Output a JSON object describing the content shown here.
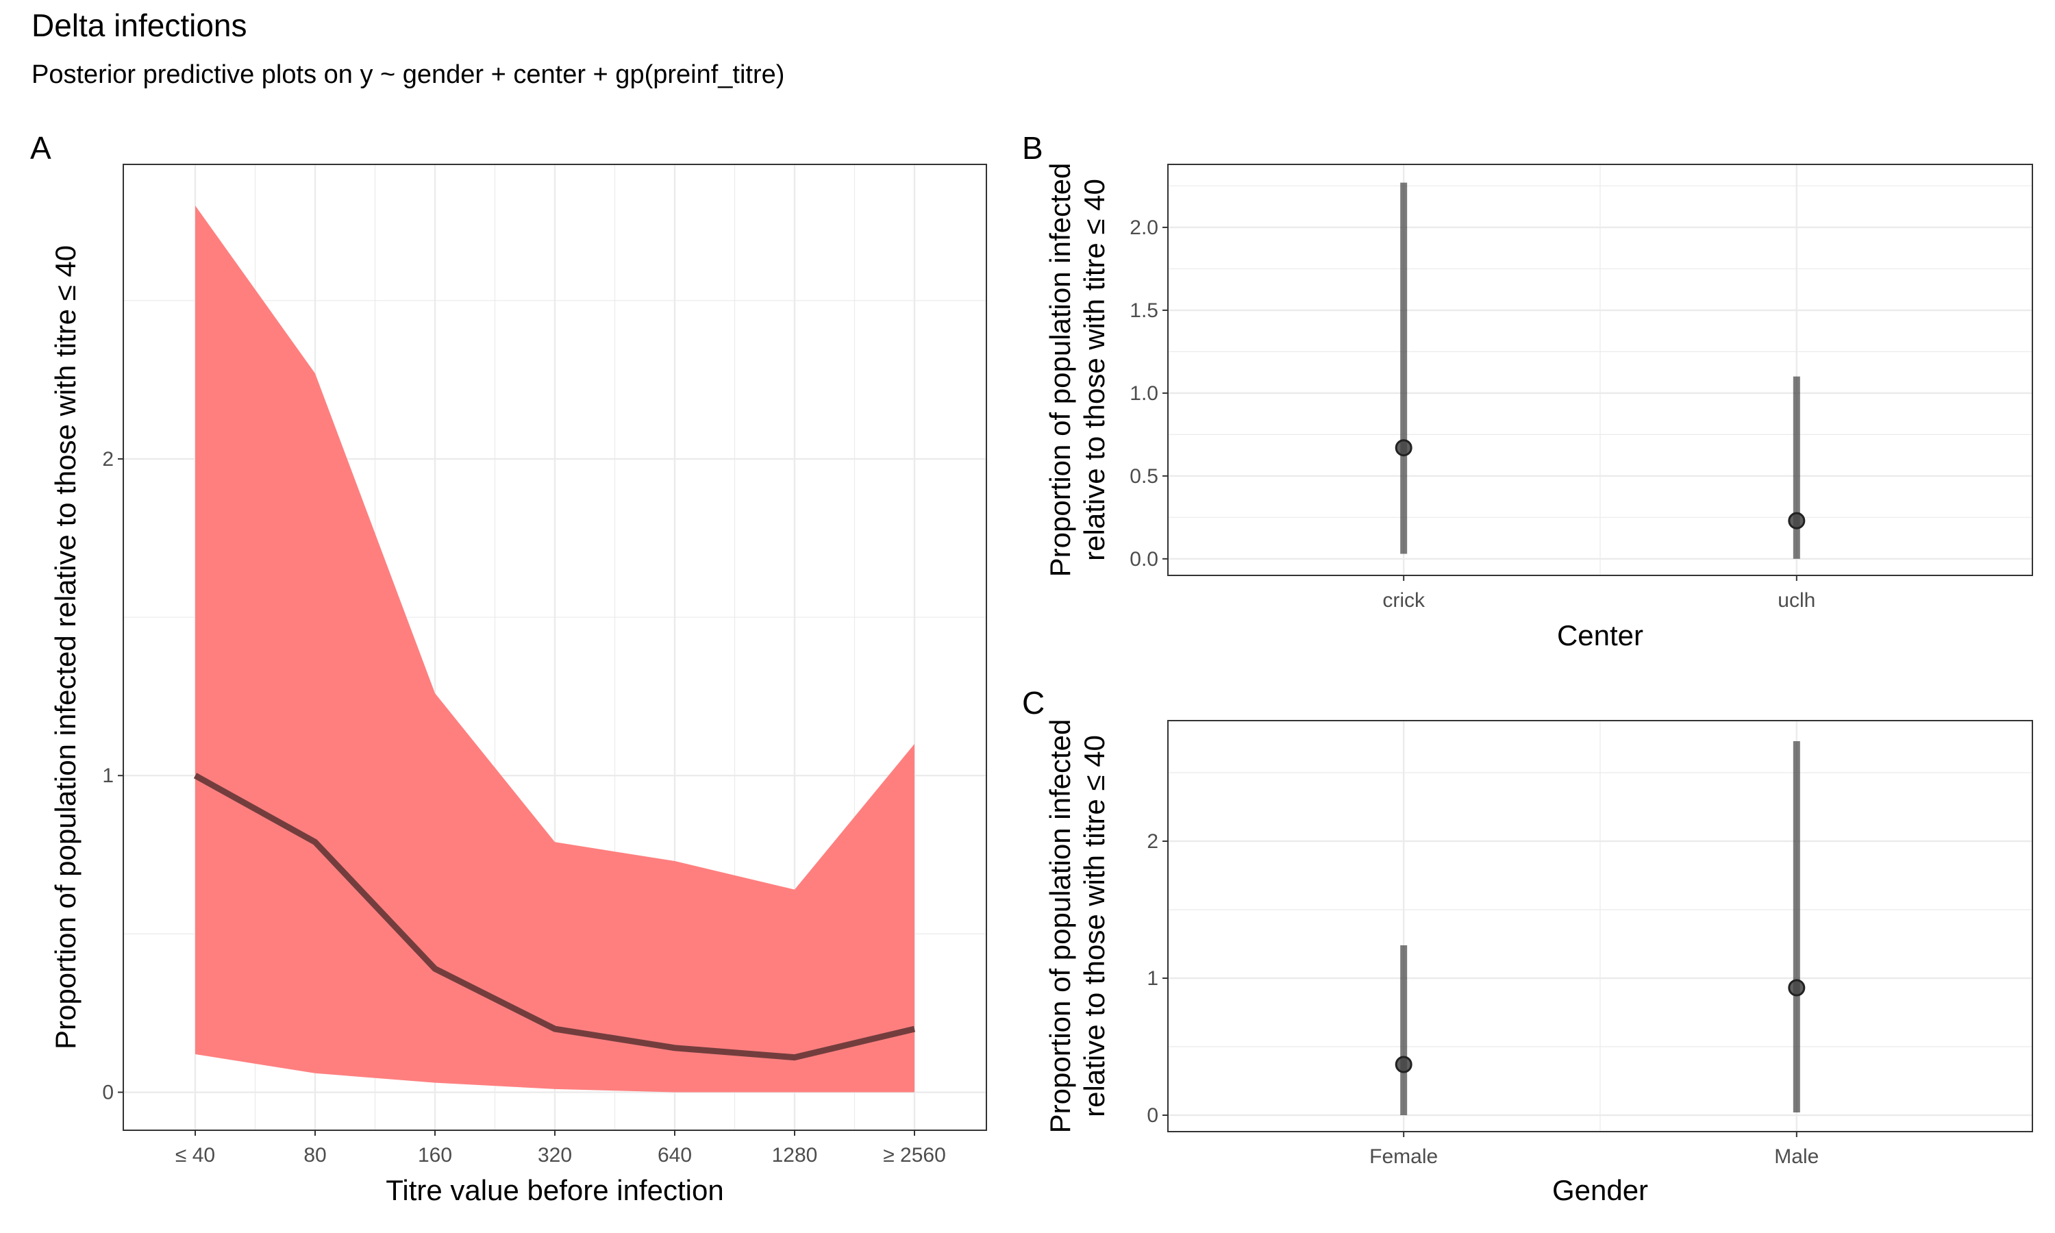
{
  "title": "Delta infections",
  "subtitle": "Posterior predictive plots on y ~ gender + center + gp(preinf_titre)",
  "colors": {
    "ribbon": "#FF7F7F",
    "line": "#6B3A3A",
    "point": "#333333",
    "grid": "#EBEBEB",
    "panel_border": "#333333"
  },
  "chart_data": [
    {
      "panel": "A",
      "type": "area",
      "xlabel": "Titre value before infection",
      "ylabel": "Proportion of population infected relative to those with titre ≤ 40",
      "categories": [
        "≤ 40",
        "80",
        "160",
        "320",
        "640",
        "1280",
        "≥ 2560"
      ],
      "y_ticks": [
        "0",
        "1",
        "2"
      ],
      "ylim": [
        -0.12,
        2.93
      ],
      "grid": true,
      "series": [
        {
          "kind": "ribbon",
          "lower": [
            0.12,
            0.06,
            0.03,
            0.01,
            0.0,
            0.0,
            0.0
          ],
          "upper": [
            2.8,
            2.27,
            1.26,
            0.79,
            0.73,
            0.64,
            1.1
          ]
        },
        {
          "kind": "line",
          "values": [
            1.0,
            0.79,
            0.39,
            0.2,
            0.14,
            0.11,
            0.2
          ]
        }
      ]
    },
    {
      "panel": "B",
      "type": "scatter",
      "xlabel": "Center",
      "ylabel_lines": [
        "Proportion of population infected",
        "relative to those with titre ≤ 40"
      ],
      "categories": [
        "crick",
        "uclh"
      ],
      "y_ticks": [
        "0.0",
        "0.5",
        "1.0",
        "1.5",
        "2.0"
      ],
      "ylim": [
        -0.1,
        2.38
      ],
      "grid": true,
      "points": [
        {
          "category": "crick",
          "estimate": 0.67,
          "lower": 0.03,
          "upper": 2.27
        },
        {
          "category": "uclh",
          "estimate": 0.23,
          "lower": 0.0,
          "upper": 1.1
        }
      ]
    },
    {
      "panel": "C",
      "type": "scatter",
      "xlabel": "Gender",
      "ylabel_lines": [
        "Proportion of population infected",
        "relative to those with titre ≤ 40"
      ],
      "categories": [
        "Female",
        "Male"
      ],
      "y_ticks": [
        "0",
        "1",
        "2"
      ],
      "ylim": [
        -0.12,
        2.88
      ],
      "grid": true,
      "points": [
        {
          "category": "Female",
          "estimate": 0.37,
          "lower": 0.0,
          "upper": 1.24
        },
        {
          "category": "Male",
          "estimate": 0.93,
          "lower": 0.02,
          "upper": 2.73
        }
      ]
    }
  ]
}
